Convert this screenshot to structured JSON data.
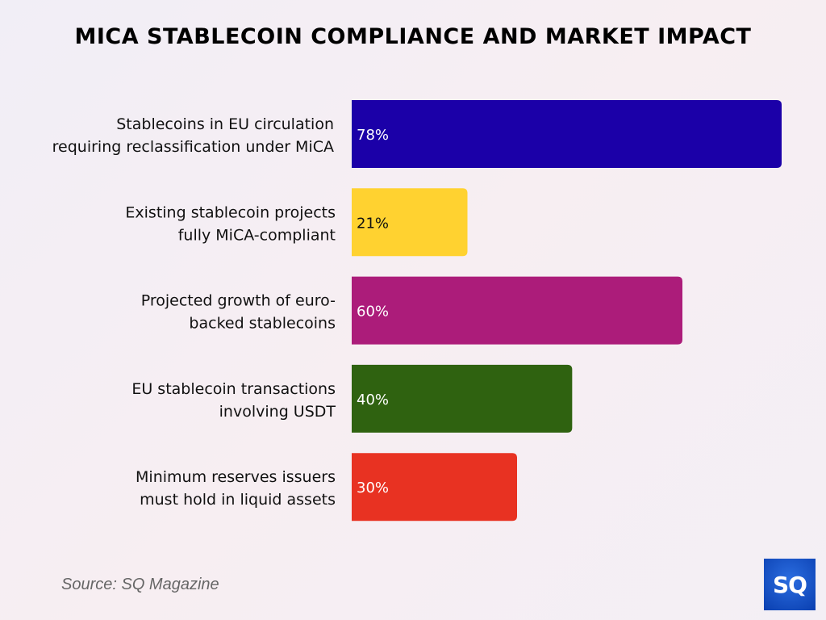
{
  "chart_data": {
    "type": "bar",
    "orientation": "horizontal",
    "title": "MICA STABLECOIN COMPLIANCE AND MARKET IMPACT",
    "categories": [
      [
        "Stablecoins in EU circulation",
        "requiring reclassification under MiCA"
      ],
      [
        "Existing stablecoin projects",
        "fully MiCA-compliant"
      ],
      [
        "Projected growth of euro-",
        "backed stablecoins"
      ],
      [
        "EU stablecoin transactions",
        "involving USDT"
      ],
      [
        "Minimum reserves issuers",
        "must hold in liquid assets"
      ]
    ],
    "values": [
      78,
      21,
      60,
      40,
      30
    ],
    "value_labels": [
      "78%",
      "21%",
      "60%",
      "40%",
      "30%"
    ],
    "colors": [
      "#1b00a8",
      "#ffd230",
      "#ac1c7a",
      "#2f6210",
      "#e83222"
    ],
    "label_colors": [
      "#ffffff",
      "#111111",
      "#ffffff",
      "#ffffff",
      "#ffffff"
    ],
    "xlim": [
      0,
      78
    ],
    "grid": false,
    "xlabel": "",
    "ylabel": ""
  },
  "source": "Source: SQ Magazine",
  "logo_text": "SQ"
}
